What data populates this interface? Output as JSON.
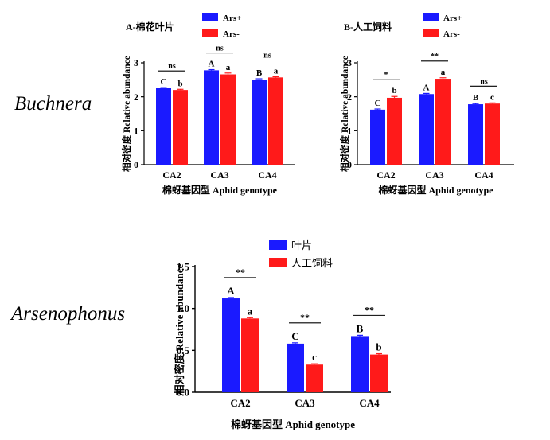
{
  "colors": {
    "series1": "#1a1aff",
    "series2": "#ff1a1a",
    "axis": "#000000",
    "text": "#000000"
  },
  "row_labels": {
    "top": "Buchnera",
    "bottom": "Arsenophonus"
  },
  "chart_data": [
    {
      "type": "bar",
      "title": "A-棉花叶片",
      "xlabel": "棉蚜基因型 Aphid genotype",
      "ylabel": "相对密度 Relative abundance",
      "categories": [
        "CA2",
        "CA3",
        "CA4"
      ],
      "ylim": [
        0,
        3
      ],
      "yticks": [
        "0",
        "1",
        "2",
        "3"
      ],
      "legend_position": "top-right",
      "series": [
        {
          "name": "Ars+",
          "values": [
            2.25,
            2.78,
            2.5
          ],
          "errors": [
            0.02,
            0.02,
            0.03
          ],
          "letters": [
            "C",
            "A",
            "B"
          ]
        },
        {
          "name": "Ars-",
          "values": [
            2.2,
            2.66,
            2.57
          ],
          "errors": [
            0.02,
            0.04,
            0.02
          ],
          "letters": [
            "b",
            "a",
            "a"
          ]
        }
      ],
      "significance": [
        "ns",
        "ns",
        "ns"
      ]
    },
    {
      "type": "bar",
      "title": "B-人工饲料",
      "xlabel": "棉蚜基因型 Aphid genotype",
      "ylabel": "相对密度 Relative abundance",
      "categories": [
        "CA2",
        "CA3",
        "CA4"
      ],
      "ylim": [
        0,
        3
      ],
      "yticks": [
        "0",
        "1",
        "2",
        "3"
      ],
      "legend_position": "top-right",
      "series": [
        {
          "name": "Ars+",
          "values": [
            1.62,
            2.08,
            1.78
          ],
          "errors": [
            0.02,
            0.02,
            0.02
          ],
          "letters": [
            "C",
            "A",
            "B"
          ]
        },
        {
          "name": "Ars-",
          "values": [
            1.97,
            2.53,
            1.8
          ],
          "errors": [
            0.04,
            0.03,
            0.02
          ],
          "letters": [
            "b",
            "a",
            "c"
          ]
        }
      ],
      "significance": [
        "*",
        "**",
        "ns"
      ]
    },
    {
      "type": "bar",
      "title": "",
      "xlabel": "棉蚜基因型 Aphid genotype",
      "ylabel": "相对密度 Relative abundance",
      "categories": [
        "CA2",
        "CA3",
        "CA4"
      ],
      "ylim": [
        0,
        1.5
      ],
      "yticks": [
        "0.0",
        "0.5",
        "1.0",
        "1.5"
      ],
      "legend_position": "top-right",
      "series": [
        {
          "name": "叶片",
          "values": [
            1.12,
            0.58,
            0.67
          ],
          "errors": [
            0.01,
            0.01,
            0.01
          ],
          "letters": [
            "A",
            "C",
            "B"
          ]
        },
        {
          "name": "人工饲料",
          "values": [
            0.88,
            0.33,
            0.45
          ],
          "errors": [
            0.01,
            0.01,
            0.01
          ],
          "letters": [
            "a",
            "c",
            "b"
          ]
        }
      ],
      "significance": [
        "**",
        "**",
        "**"
      ]
    }
  ]
}
